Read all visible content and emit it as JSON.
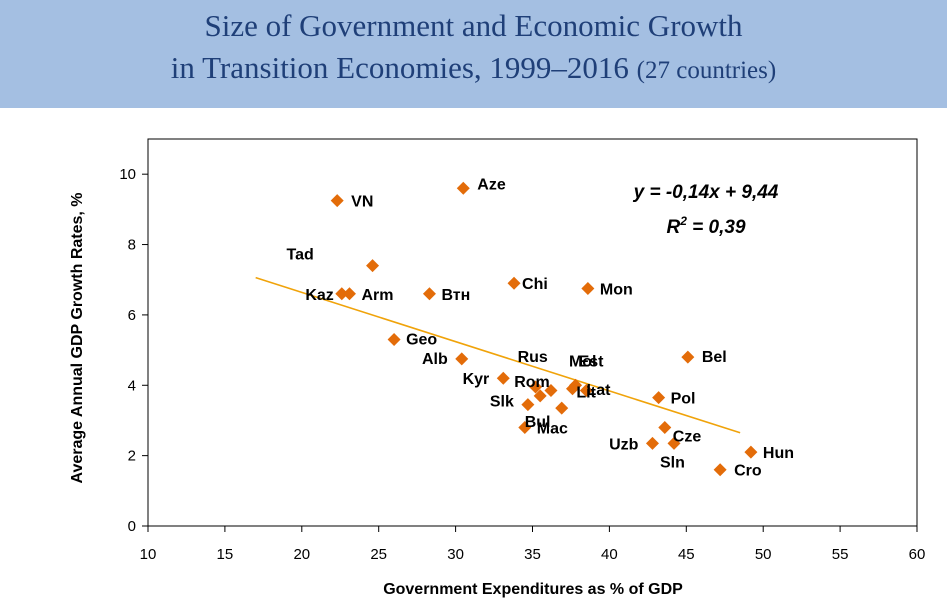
{
  "title": {
    "line1": "Size of Government and Economic Growth",
    "line2_main": "in Transition Economies, 1999–2016",
    "line2_small": "(27 countries)"
  },
  "chart_data": {
    "type": "scatter",
    "xlabel": "Government Expenditures as % of GDP",
    "ylabel": "Average Annual GDP Growth Rates, %",
    "xlim": [
      10,
      60
    ],
    "ylim": [
      0,
      11
    ],
    "x_ticks": [
      10,
      15,
      20,
      25,
      30,
      35,
      40,
      45,
      50,
      55,
      60
    ],
    "y_ticks": [
      0,
      2,
      4,
      6,
      8,
      10
    ],
    "grid": false,
    "marker_color": "#e36c09",
    "trend_color": "#f0a30a",
    "trendline": {
      "slope": -0.14,
      "intercept": 9.44,
      "x_range": [
        17,
        48.5
      ]
    },
    "equation_text": "y = -0,14x + 9,44",
    "r2_text_prefix": "R",
    "r2_text_exp": "2",
    "r2_text_suffix": " = 0,39",
    "points": [
      {
        "label": "VN",
        "x": 22.3,
        "y": 9.25
      },
      {
        "label": "Aze",
        "x": 30.5,
        "y": 9.6
      },
      {
        "label": "Tad",
        "x": 24.6,
        "y": 7.4
      },
      {
        "label": "Kaz",
        "x": 22.6,
        "y": 6.6
      },
      {
        "label": "Arm",
        "x": 23.1,
        "y": 6.6
      },
      {
        "label": "Втн",
        "x": 28.3,
        "y": 6.6
      },
      {
        "label": "Chi",
        "x": 33.8,
        "y": 6.9
      },
      {
        "label": "Mon",
        "x": 38.6,
        "y": 6.75
      },
      {
        "label": "Geo",
        "x": 26.0,
        "y": 5.3
      },
      {
        "label": "Alb",
        "x": 30.4,
        "y": 4.75
      },
      {
        "label": "Bel",
        "x": 45.1,
        "y": 4.8
      },
      {
        "label": "Kyr",
        "x": 33.1,
        "y": 4.2
      },
      {
        "label": "Rus",
        "x": 35.2,
        "y": 3.95
      },
      {
        "label": "Rom",
        "x": 35.5,
        "y": 3.7
      },
      {
        "label": "Slk",
        "x": 34.7,
        "y": 3.45
      },
      {
        "label": "Mol",
        "x": 36.2,
        "y": 3.85
      },
      {
        "label": "Est",
        "x": 37.8,
        "y": 4.0
      },
      {
        "label": "Lit",
        "x": 38.5,
        "y": 3.85
      },
      {
        "label": "Lat",
        "x": 37.6,
        "y": 3.9
      },
      {
        "label": "Bul",
        "x": 36.9,
        "y": 3.35
      },
      {
        "label": "Mac",
        "x": 34.5,
        "y": 2.8
      },
      {
        "label": "Pol",
        "x": 43.2,
        "y": 3.65
      },
      {
        "label": "Cze",
        "x": 43.6,
        "y": 2.8
      },
      {
        "label": "Uzb",
        "x": 42.8,
        "y": 2.35
      },
      {
        "label": "Sln",
        "x": 44.2,
        "y": 2.35
      },
      {
        "label": "Hun",
        "x": 49.2,
        "y": 2.1
      },
      {
        "label": "Cro",
        "x": 47.2,
        "y": 1.6
      }
    ]
  }
}
